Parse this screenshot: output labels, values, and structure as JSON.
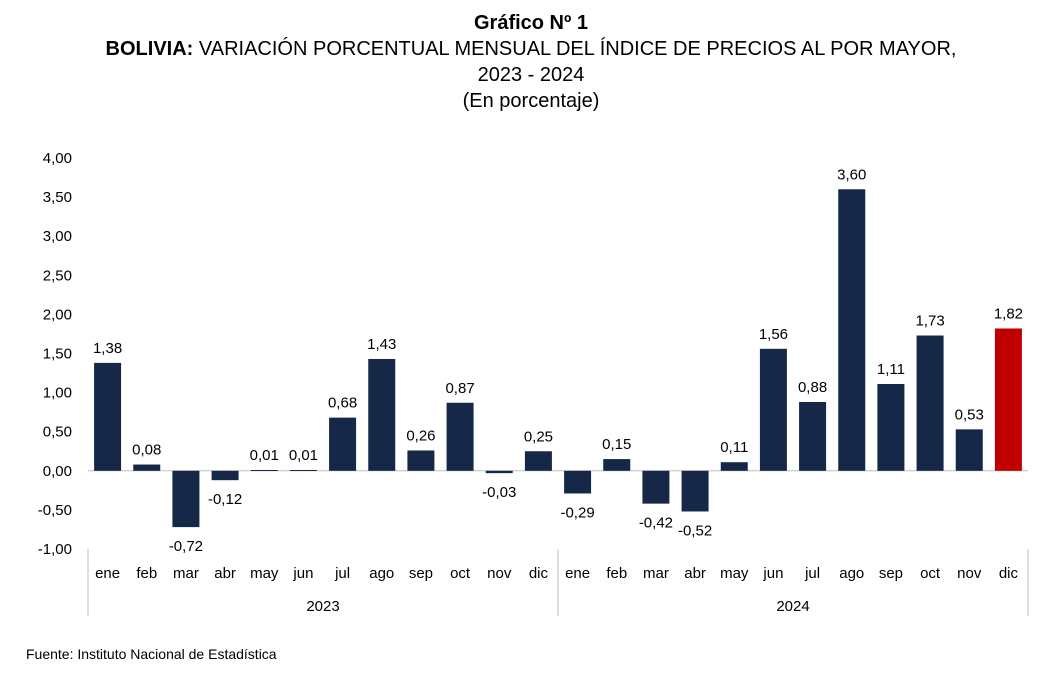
{
  "header": {
    "figure_label": "Gráfico Nº 1",
    "country": "BOLIVIA:",
    "title_rest": " VARIACIÓN PORCENTUAL MENSUAL DEL ÍNDICE DE PRECIOS AL POR MAYOR,",
    "years": "2023 - 2024",
    "unit": "(En porcentaje)"
  },
  "footer": {
    "source": "Fuente: Instituto Nacional de Estadística"
  },
  "chart_data": {
    "type": "bar",
    "categories": [
      "ene",
      "feb",
      "mar",
      "abr",
      "may",
      "jun",
      "jul",
      "ago",
      "sep",
      "oct",
      "nov",
      "dic",
      "ene",
      "feb",
      "mar",
      "abr",
      "may",
      "jun",
      "jul",
      "ago",
      "sep",
      "oct",
      "nov",
      "dic"
    ],
    "groups": [
      {
        "label": "2023",
        "count": 12
      },
      {
        "label": "2024",
        "count": 12
      }
    ],
    "values": [
      1.38,
      0.08,
      -0.72,
      -0.12,
      0.01,
      0.01,
      0.68,
      1.43,
      0.26,
      0.87,
      -0.03,
      0.25,
      -0.29,
      0.15,
      -0.42,
      -0.52,
      0.11,
      1.56,
      0.88,
      3.6,
      1.11,
      1.73,
      0.53,
      1.82
    ],
    "value_labels": [
      "1,38",
      "0,08",
      "-0,72",
      "-0,12",
      "0,01",
      "0,01",
      "0,68",
      "1,43",
      "0,26",
      "0,87",
      "-0,03",
      "0,25",
      "-0,29",
      "0,15",
      "-0,42",
      "-0,52",
      "0,11",
      "1,56",
      "0,88",
      "3,60",
      "1,11",
      "1,73",
      "0,53",
      "1,82"
    ],
    "ylim": [
      -1.0,
      4.0
    ],
    "yticks": [
      -1.0,
      -0.5,
      0.0,
      0.5,
      1.0,
      1.5,
      2.0,
      2.5,
      3.0,
      3.5,
      4.0
    ],
    "ytick_labels": [
      "-1,00",
      "-0,50",
      "0,00",
      "0,50",
      "1,00",
      "1,50",
      "2,00",
      "2,50",
      "3,00",
      "3,50",
      "4,00"
    ],
    "grid": false,
    "legend": "none",
    "colors": {
      "bar": "#152848",
      "highlight": "#c00000",
      "axis": "#bfbfbf"
    },
    "highlight_index": 23
  }
}
